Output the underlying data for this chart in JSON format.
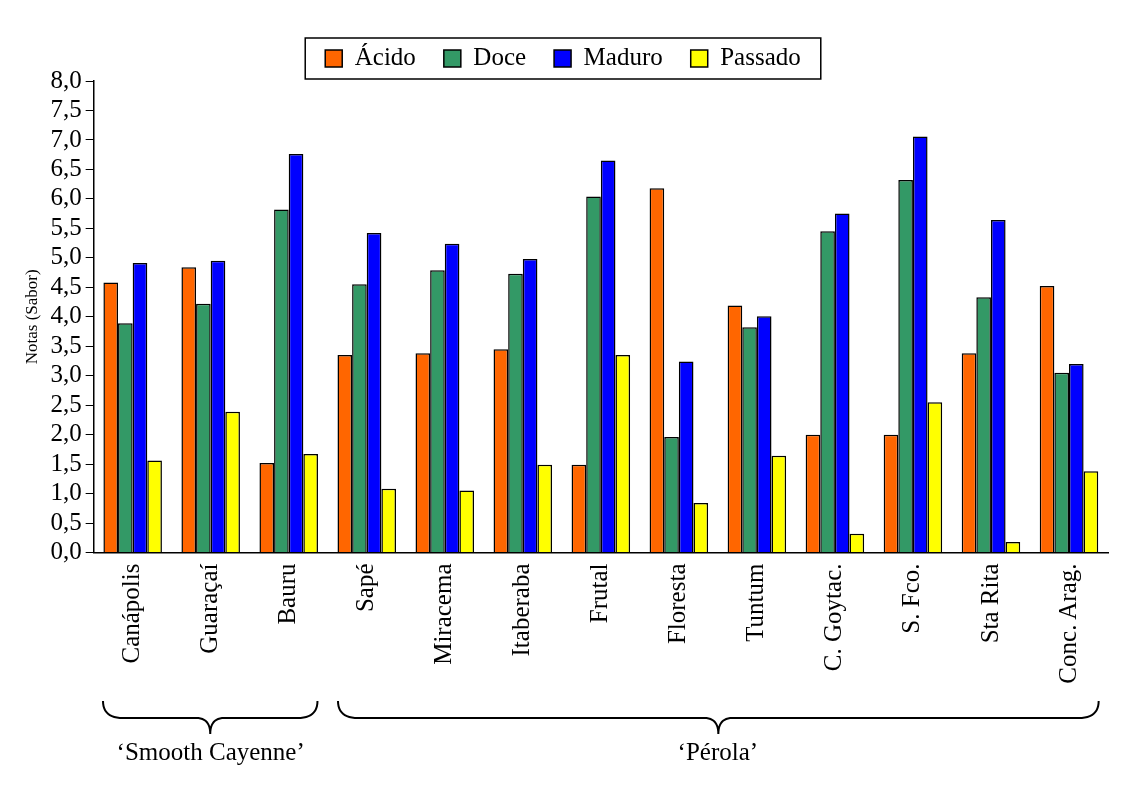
{
  "chart_data": {
    "type": "bar",
    "ylabel": "Notas (Sabor)",
    "categories": [
      "Canápolis",
      "Guaraçaí",
      "Bauru",
      "Sapé",
      "Miracema",
      "Itaberaba",
      "Frutal",
      "Floresta",
      "Tuntum",
      "C. Goytac.",
      "S. Fco.",
      "Sta Rita",
      "Conc. Arag."
    ],
    "series": [
      {
        "name": "Ácido",
        "color": "#ff6600",
        "values": [
          4.58,
          4.84,
          1.52,
          3.35,
          3.38,
          3.45,
          1.49,
          6.18,
          4.19,
          2.0,
          2.0,
          3.38,
          4.52
        ]
      },
      {
        "name": "Doce",
        "color": "#339966",
        "values": [
          3.89,
          4.22,
          5.82,
          4.55,
          4.79,
          4.73,
          6.04,
          1.96,
          3.82,
          5.45,
          6.32,
          4.33,
          3.05
        ]
      },
      {
        "name": "Maduro",
        "color": "#0000ff",
        "values": [
          4.91,
          4.95,
          6.76,
          5.42,
          5.24,
          4.98,
          6.65,
          3.24,
          4.01,
          5.75,
          7.06,
          5.64,
          3.2
        ]
      },
      {
        "name": "Passado",
        "color": "#ffff00",
        "values": [
          1.56,
          2.39,
          1.67,
          1.08,
          1.05,
          1.49,
          3.35,
          0.84,
          1.64,
          0.32,
          2.55,
          0.18,
          1.38
        ]
      }
    ],
    "ylim": [
      0,
      8
    ],
    "yticks": [
      {
        "value": 0,
        "label": "0,0"
      },
      {
        "value": 0.5,
        "label": "0,5"
      },
      {
        "value": 1,
        "label": "1,0"
      },
      {
        "value": 1.5,
        "label": "1,5"
      },
      {
        "value": 2,
        "label": "2,0"
      },
      {
        "value": 2.5,
        "label": "2,5"
      },
      {
        "value": 3,
        "label": "3,0"
      },
      {
        "value": 3.5,
        "label": "3,5"
      },
      {
        "value": 4,
        "label": "4,0"
      },
      {
        "value": 4.5,
        "label": "4,5"
      },
      {
        "value": 5,
        "label": "5,0"
      },
      {
        "value": 5.5,
        "label": "5,5"
      },
      {
        "value": 6,
        "label": "6,0"
      },
      {
        "value": 6.5,
        "label": "6,5"
      },
      {
        "value": 7,
        "label": "7,0"
      },
      {
        "value": 7.5,
        "label": "7,5"
      },
      {
        "value": 8,
        "label": "8,0"
      }
    ],
    "grid": false,
    "legend": "top",
    "annotations": [
      "‘Smooth Cayenne’",
      "‘Pérola’"
    ]
  }
}
